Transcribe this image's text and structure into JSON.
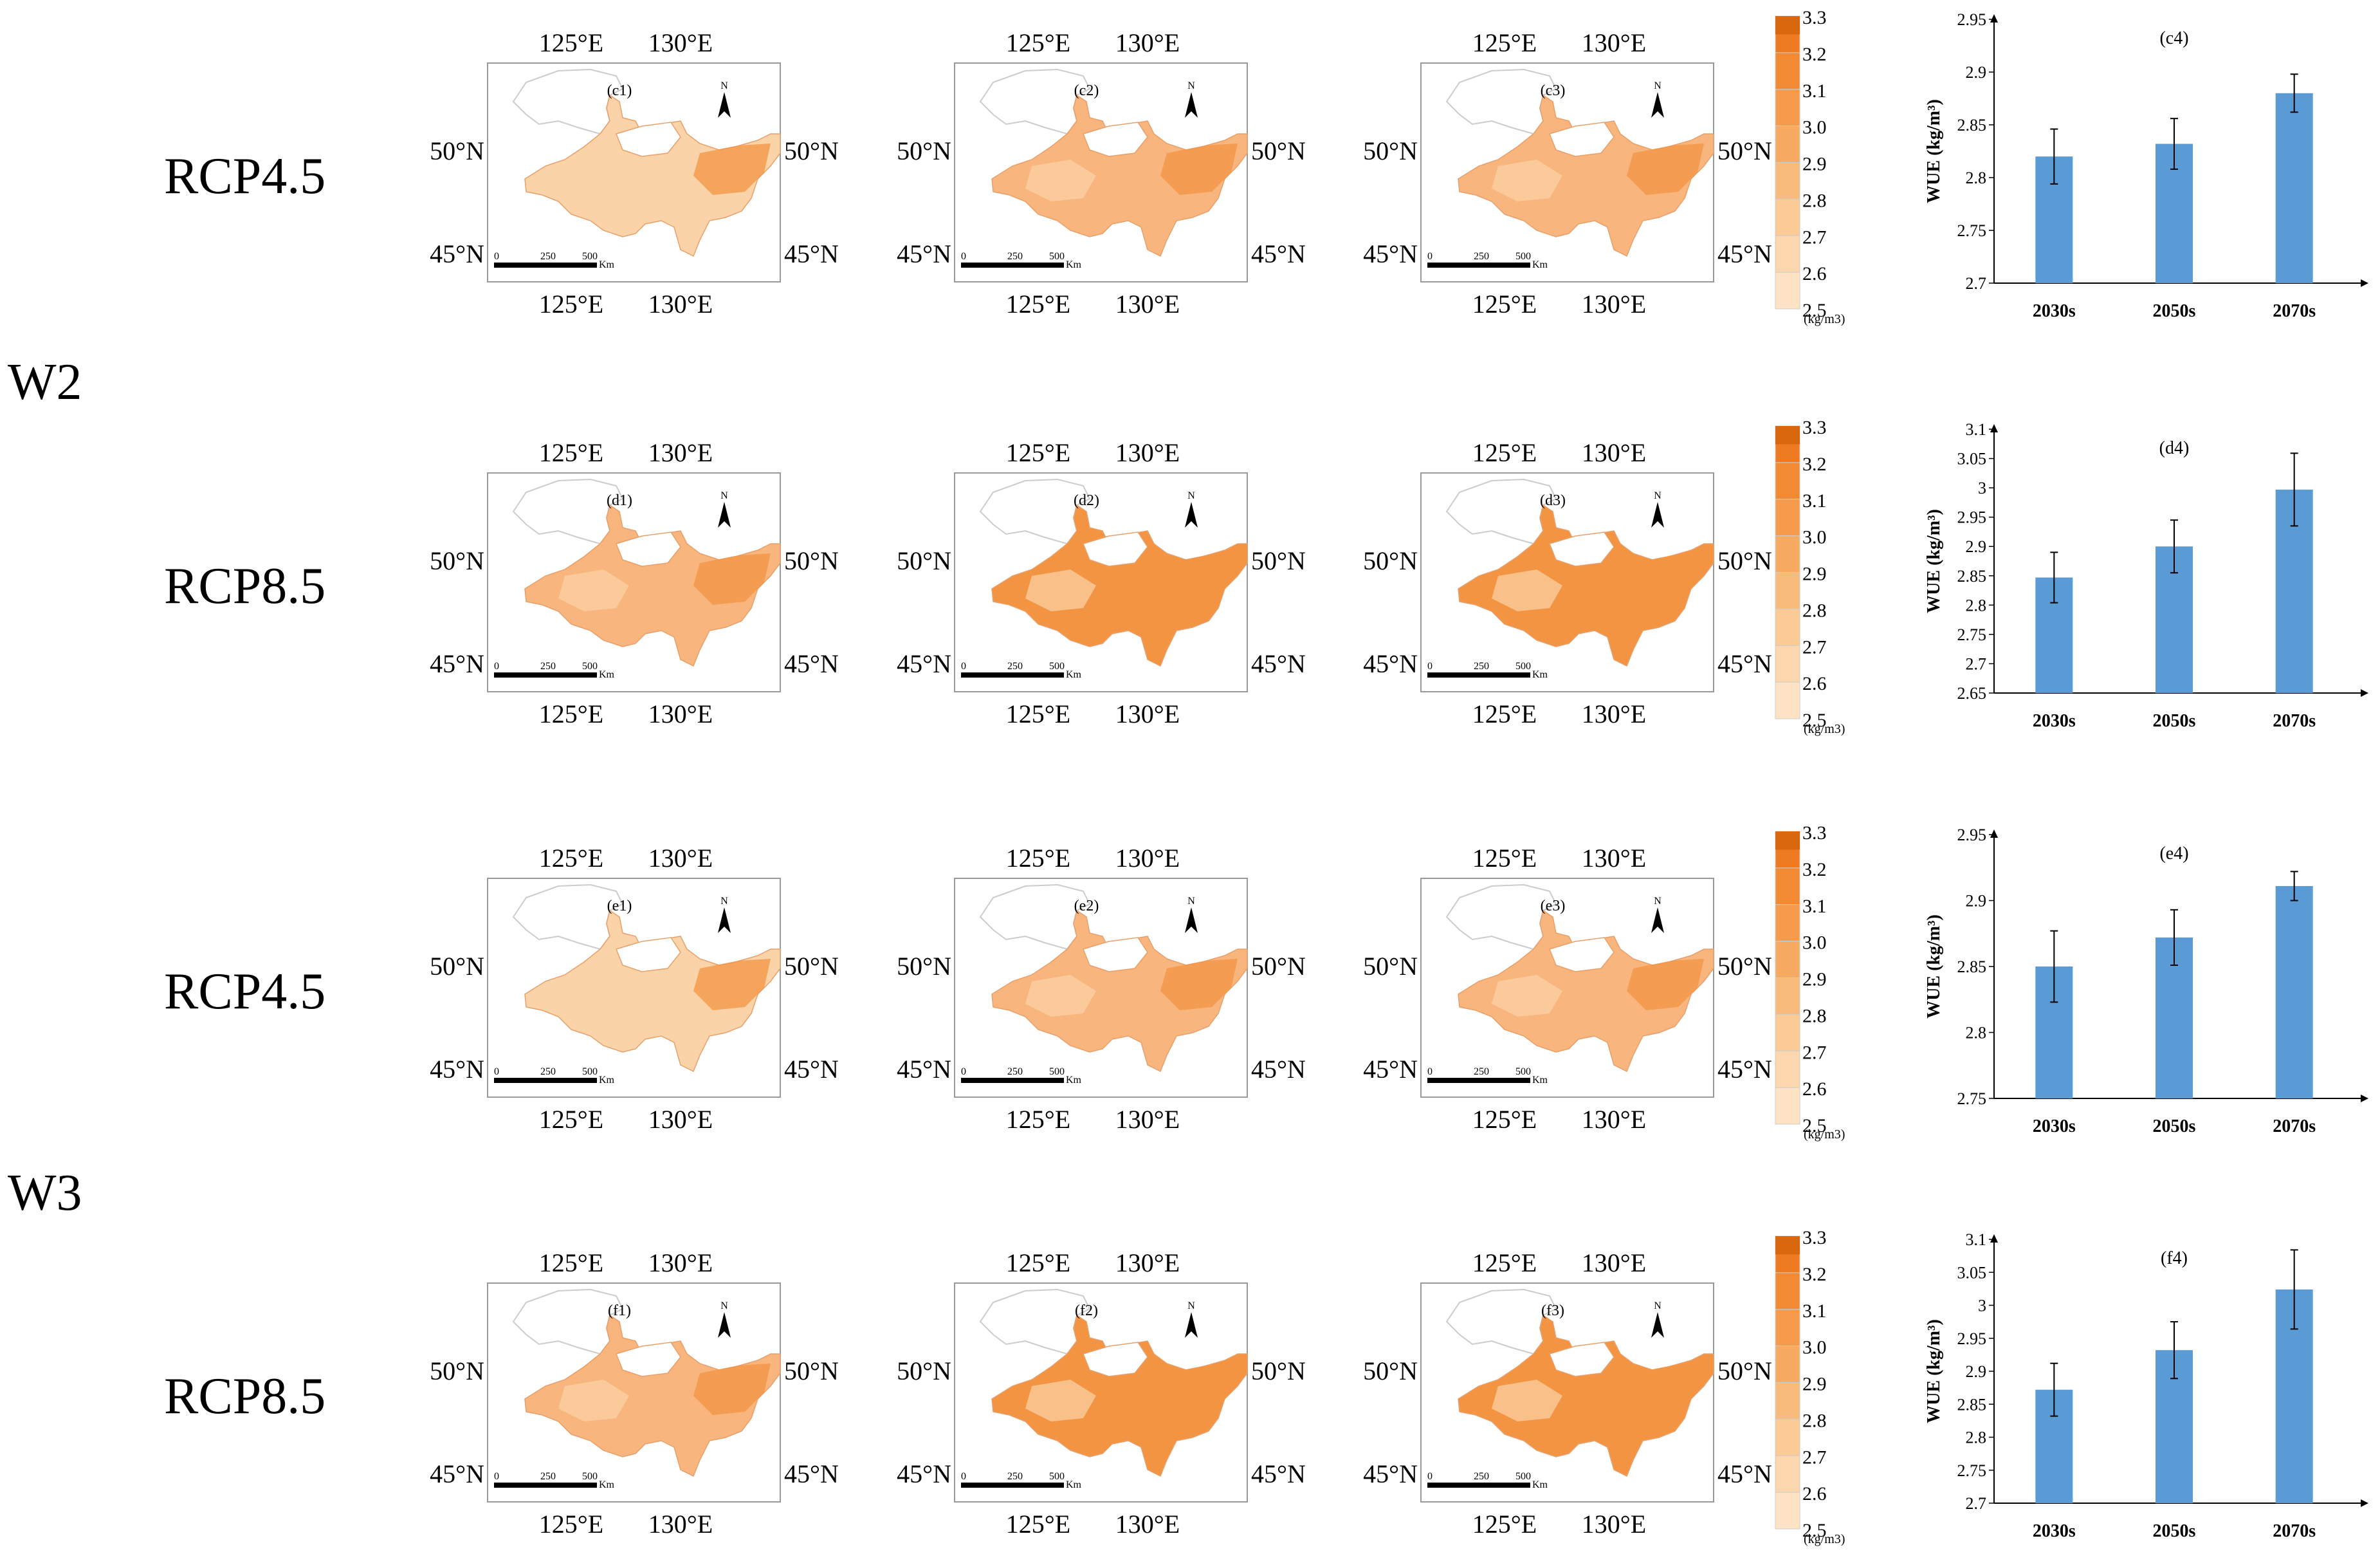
{
  "groups": [
    {
      "label": "W2",
      "rows": [
        0,
        1
      ]
    },
    {
      "label": "W3",
      "rows": [
        2,
        3
      ]
    }
  ],
  "rows": [
    {
      "scenario": "RCP4.5",
      "maps": [
        "(c1)",
        "(c2)",
        "(c3)"
      ],
      "chart_ref": 0
    },
    {
      "scenario": "RCP8.5",
      "maps": [
        "(d1)",
        "(d2)",
        "(d3)"
      ],
      "chart_ref": 1
    },
    {
      "scenario": "RCP4.5",
      "maps": [
        "(e1)",
        "(e2)",
        "(e3)"
      ],
      "chart_ref": 2
    },
    {
      "scenario": "RCP8.5",
      "maps": [
        "(f1)",
        "(f2)",
        "(f3)"
      ],
      "chart_ref": 3
    }
  ],
  "map_labels": {
    "lon": [
      "125°E",
      "130°E"
    ],
    "lat": [
      "50°N",
      "45°N"
    ],
    "north": "N",
    "scale": [
      "0",
      "250",
      "500"
    ],
    "scale_unit": "Km"
  },
  "colorbar": {
    "ticks": [
      "3.3",
      "3.2",
      "3.1",
      "3.0",
      "2.9",
      "2.8",
      "2.7",
      "2.6",
      "2.5"
    ],
    "unit": "(kg/m3)",
    "colors": [
      "#fde3c3",
      "#fcd6ac",
      "#fbca95",
      "#f9bb7c",
      "#f7ab62",
      "#f59b4b",
      "#f28a34",
      "#ee7a22",
      "#d9670d"
    ]
  },
  "region_colors": {
    "low": "#fbd3a8",
    "mid": "#f8b57d",
    "high": "#f39443",
    "outline": "#cccccc"
  },
  "chart_data": [
    {
      "type": "bar",
      "title": "(c4)",
      "categories": [
        "2030s",
        "2050s",
        "2070s"
      ],
      "values": [
        2.82,
        2.832,
        2.88
      ],
      "errors": [
        0.026,
        0.024,
        0.018
      ],
      "ylabel": "WUE (kg/m³)",
      "ylim": [
        2.7,
        2.95
      ],
      "yticks": [
        "2.95",
        "2.9",
        "2.85",
        "2.8",
        "2.75",
        "2.7"
      ],
      "color": "#5b9bd5"
    },
    {
      "type": "bar",
      "title": "(d4)",
      "categories": [
        "2030s",
        "2050s",
        "2070s"
      ],
      "values": [
        2.847,
        2.9,
        2.997
      ],
      "errors": [
        0.043,
        0.045,
        0.062
      ],
      "ylabel": "WUE (kg/m³)",
      "ylim": [
        2.65,
        3.1
      ],
      "yticks": [
        "3.1",
        "3.05",
        "3",
        "2.95",
        "2.9",
        "2.85",
        "2.8",
        "2.75",
        "2.7",
        "2.65"
      ],
      "color": "#5b9bd5"
    },
    {
      "type": "bar",
      "title": "(e4)",
      "categories": [
        "2030s",
        "2050s",
        "2070s"
      ],
      "values": [
        2.85,
        2.872,
        2.911
      ],
      "errors": [
        0.027,
        0.021,
        0.011
      ],
      "ylabel": "WUE (kg/m³)",
      "ylim": [
        2.75,
        2.95
      ],
      "yticks": [
        "2.95",
        "2.9",
        "2.85",
        "2.8",
        "2.75"
      ],
      "color": "#5b9bd5"
    },
    {
      "type": "bar",
      "title": "(f4)",
      "categories": [
        "2030s",
        "2050s",
        "2070s"
      ],
      "values": [
        2.872,
        2.932,
        3.024
      ],
      "errors": [
        0.04,
        0.043,
        0.06
      ],
      "ylabel": "WUE (kg/m³)",
      "ylim": [
        2.7,
        3.1
      ],
      "yticks": [
        "3.1",
        "3.05",
        "3",
        "2.95",
        "2.9",
        "2.85",
        "2.8",
        "2.75",
        "2.7"
      ],
      "color": "#5b9bd5"
    }
  ]
}
